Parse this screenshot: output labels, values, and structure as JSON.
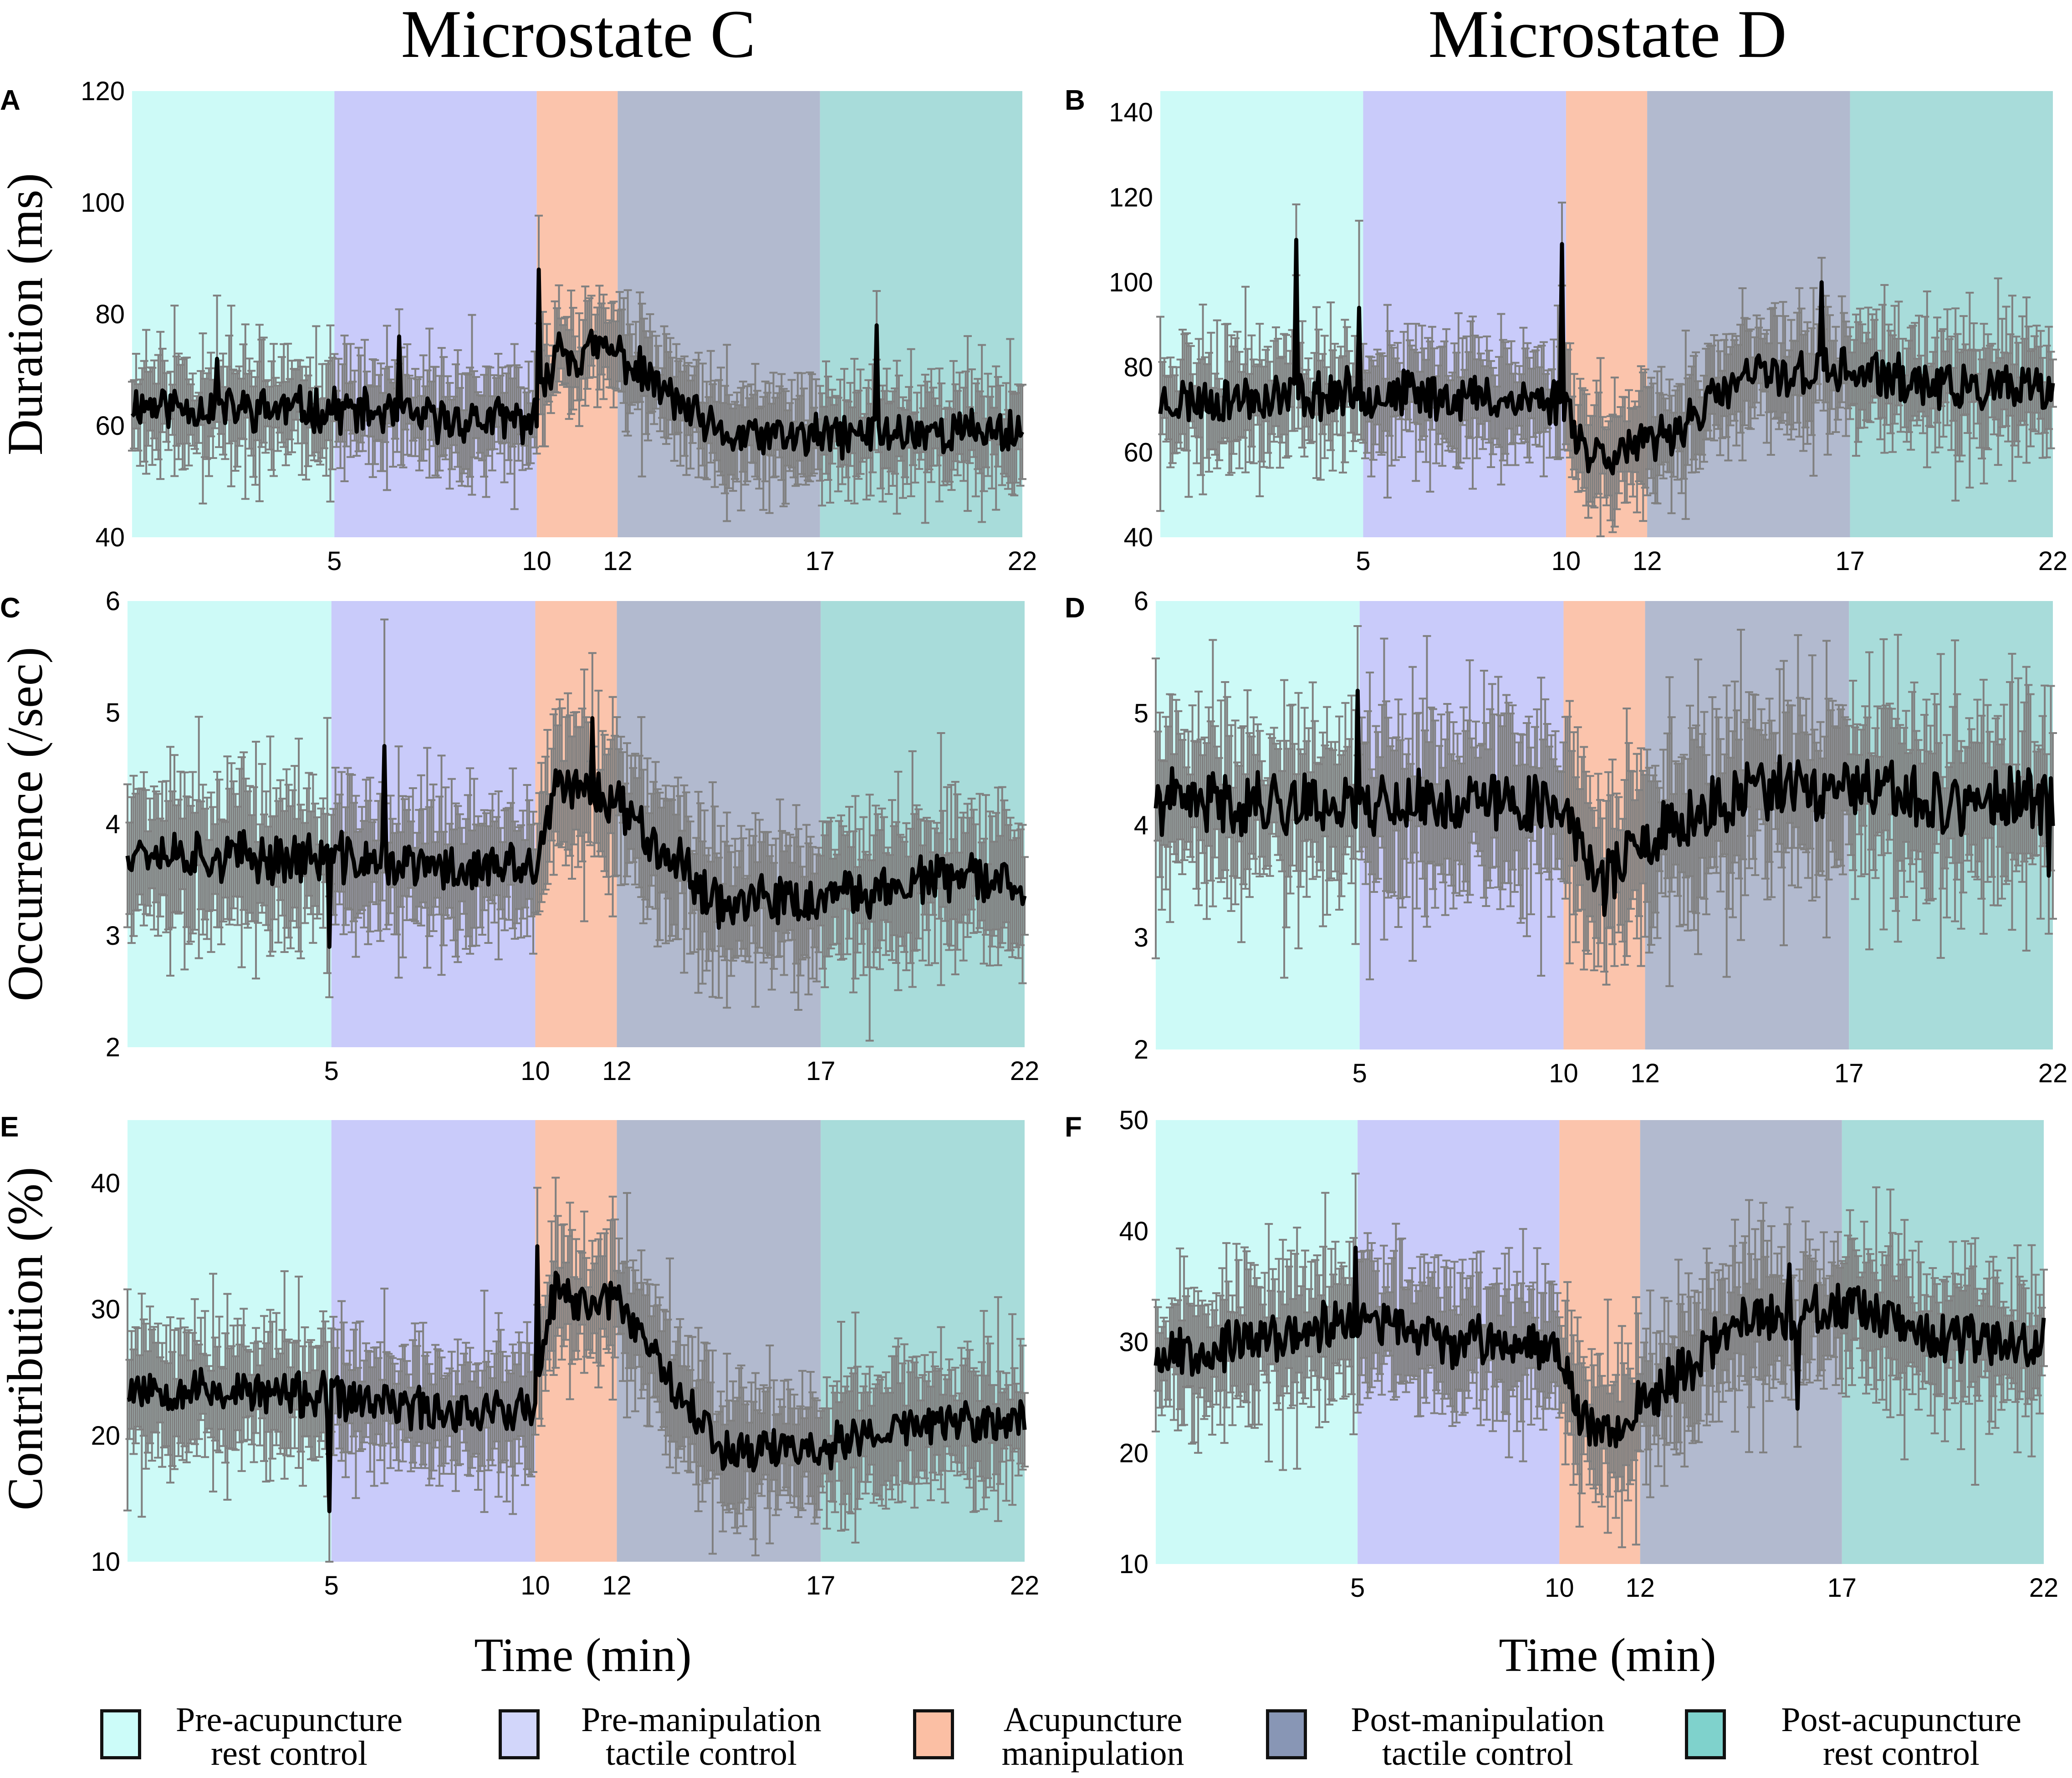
{
  "column_titles": [
    "Microstate C",
    "Microstate D"
  ],
  "x_axis_label": "Time (min)",
  "colors": {
    "pre_rest": "#cdfaf7",
    "pre_tactile": "#c9cbfa",
    "acupuncture": "#fbc4ac",
    "post_tactile": "#b2bacf",
    "post_rest": "#a8dcda",
    "line": "#000000",
    "error_bar": "#808080"
  },
  "legend": [
    {
      "key": "pre_rest",
      "line1": "Pre-acupuncture",
      "line2": "rest control",
      "color": "#ccfcf9"
    },
    {
      "key": "pre_tactile",
      "line1": "Pre-manipulation",
      "line2": "tactile control",
      "color": "#d2d6fa"
    },
    {
      "key": "acupuncture",
      "line1": "Acupuncture",
      "line2": "manipulation",
      "color": "#fbbfa4"
    },
    {
      "key": "post_tactile",
      "line1": "Post-manipulation",
      "line2": "tactile control",
      "color": "#8896b5"
    },
    {
      "key": "post_rest",
      "line1": "Post-acupuncture",
      "line2": "rest control",
      "color": "#7fd2cc"
    }
  ],
  "chart_data": [
    {
      "panel": "A",
      "type": "line",
      "column": "Microstate C",
      "ylabel": "Duration (ms)",
      "xlabel": "",
      "xlim": [
        0,
        22
      ],
      "ylim": [
        40,
        120
      ],
      "xticks": [
        5,
        10,
        12,
        17,
        22
      ],
      "yticks": [
        40,
        60,
        80,
        100,
        120
      ],
      "xtick_labels": [
        "5",
        "10",
        "12",
        "17",
        "22"
      ],
      "ytick_labels": [
        "40",
        "60",
        "80",
        "100",
        "120"
      ],
      "phases": [
        {
          "key": "pre_rest",
          "start": 0,
          "end": 5
        },
        {
          "key": "pre_tactile",
          "start": 5,
          "end": 10
        },
        {
          "key": "acupuncture",
          "start": 10,
          "end": 12
        },
        {
          "key": "post_tactile",
          "start": 12,
          "end": 17
        },
        {
          "key": "post_rest",
          "start": 17,
          "end": 22
        }
      ],
      "phase_means": [
        63,
        61,
        73,
        58,
        59
      ],
      "series": [
        {
          "name": "Mean duration",
          "x": [
            0,
            2.5,
            5,
            7.5,
            10,
            10.5,
            11,
            11.5,
            12,
            14.5,
            17,
            19.5,
            22
          ],
          "y": [
            64,
            63,
            63,
            61,
            61,
            75,
            72,
            74,
            73,
            58,
            58,
            59,
            59
          ]
        }
      ],
      "noise": 3.5,
      "err": 7,
      "seed": 11,
      "spikes": [
        {
          "x": 10.05,
          "y": 88
        },
        {
          "x": 2.1,
          "y": 72
        },
        {
          "x": 6.6,
          "y": 76
        },
        {
          "x": 18.4,
          "y": 78
        }
      ]
    },
    {
      "panel": "B",
      "type": "line",
      "column": "Microstate D",
      "ylabel": "",
      "xlabel": "",
      "xlim": [
        0,
        22
      ],
      "ylim": [
        40,
        145
      ],
      "xticks": [
        5,
        10,
        12,
        17,
        22
      ],
      "yticks": [
        40,
        60,
        80,
        100,
        120,
        140
      ],
      "xtick_labels": [
        "5",
        "10",
        "12",
        "17",
        "22"
      ],
      "ytick_labels": [
        "40",
        "60",
        "80",
        "100",
        "120",
        "140"
      ],
      "phases": [
        {
          "key": "pre_rest",
          "start": 0,
          "end": 5
        },
        {
          "key": "pre_tactile",
          "start": 5,
          "end": 10
        },
        {
          "key": "acupuncture",
          "start": 10,
          "end": 12
        },
        {
          "key": "post_tactile",
          "start": 12,
          "end": 17
        },
        {
          "key": "post_rest",
          "start": 17,
          "end": 22
        }
      ],
      "phase_means": [
        73,
        73,
        60,
        79,
        74
      ],
      "series": [
        {
          "name": "Mean duration",
          "x": [
            0,
            2.5,
            5,
            7.5,
            10,
            10.5,
            11,
            11.5,
            12,
            14.5,
            17,
            19.5,
            22
          ],
          "y": [
            72,
            73,
            74,
            73,
            72,
            60,
            60,
            61,
            61,
            78,
            79,
            75,
            74
          ]
        }
      ],
      "noise": 5,
      "err": 10,
      "seed": 23,
      "spikes": [
        {
          "x": 3.35,
          "y": 110
        },
        {
          "x": 9.9,
          "y": 109
        },
        {
          "x": 4.9,
          "y": 94
        },
        {
          "x": 16.3,
          "y": 100
        }
      ]
    },
    {
      "panel": "C",
      "type": "line",
      "column": "Microstate C",
      "ylabel": "Occurrence (/sec)",
      "xlabel": "",
      "xlim": [
        0,
        22
      ],
      "ylim": [
        2,
        6
      ],
      "xticks": [
        5,
        10,
        12,
        17,
        22
      ],
      "yticks": [
        2,
        3,
        4,
        5,
        6
      ],
      "xtick_labels": [
        "5",
        "10",
        "12",
        "17",
        "22"
      ],
      "ytick_labels": [
        "2",
        "3",
        "4",
        "5",
        "6"
      ],
      "phases": [
        {
          "key": "pre_rest",
          "start": 0,
          "end": 5
        },
        {
          "key": "pre_tactile",
          "start": 5,
          "end": 10
        },
        {
          "key": "acupuncture",
          "start": 10,
          "end": 12
        },
        {
          "key": "post_tactile",
          "start": 12,
          "end": 17
        },
        {
          "key": "post_rest",
          "start": 17,
          "end": 22
        }
      ],
      "phase_means": [
        3.7,
        3.6,
        4.3,
        3.3,
        3.5
      ],
      "series": [
        {
          "name": "Mean occurrence",
          "x": [
            0,
            2.5,
            5,
            7.5,
            10,
            10.5,
            11,
            11.5,
            12,
            14.5,
            17,
            19.5,
            22
          ],
          "y": [
            3.8,
            3.7,
            3.7,
            3.6,
            3.6,
            4.3,
            4.3,
            4.3,
            4.2,
            3.3,
            3.3,
            3.5,
            3.5
          ]
        }
      ],
      "noise": 0.2,
      "err": 0.5,
      "seed": 37,
      "spikes": [
        {
          "x": 4.95,
          "y": 2.9
        },
        {
          "x": 6.3,
          "y": 4.7
        },
        {
          "x": 11.4,
          "y": 4.95
        }
      ]
    },
    {
      "panel": "D",
      "type": "line",
      "column": "Microstate D",
      "ylabel": "",
      "xlabel": "",
      "xlim": [
        0,
        22
      ],
      "ylim": [
        2,
        6
      ],
      "xticks": [
        5,
        10,
        12,
        17,
        22
      ],
      "yticks": [
        2,
        3,
        4,
        5,
        6
      ],
      "xtick_labels": [
        "5",
        "10",
        "12",
        "17",
        "22"
      ],
      "ytick_labels": [
        "2",
        "3",
        "4",
        "5",
        "6"
      ],
      "phases": [
        {
          "key": "pre_rest",
          "start": 0,
          "end": 5
        },
        {
          "key": "pre_tactile",
          "start": 5,
          "end": 10
        },
        {
          "key": "acupuncture",
          "start": 10,
          "end": 12
        },
        {
          "key": "post_tactile",
          "start": 12,
          "end": 17
        },
        {
          "key": "post_rest",
          "start": 17,
          "end": 22
        }
      ],
      "phase_means": [
        4.2,
        4.2,
        3.7,
        4.3,
        4.2
      ],
      "series": [
        {
          "name": "Mean occurrence",
          "x": [
            0,
            2.5,
            5,
            7.5,
            10,
            10.5,
            11,
            11.5,
            12,
            14.5,
            17,
            19.5,
            22
          ],
          "y": [
            4.2,
            4.2,
            4.2,
            4.2,
            4.2,
            3.7,
            3.6,
            3.7,
            3.8,
            4.3,
            4.3,
            4.2,
            4.2
          ]
        }
      ],
      "noise": 0.25,
      "err": 0.6,
      "seed": 41,
      "spikes": [
        {
          "x": 4.95,
          "y": 5.2
        },
        {
          "x": 11.0,
          "y": 3.2
        },
        {
          "x": 21.9,
          "y": 3.55
        }
      ]
    },
    {
      "panel": "E",
      "type": "line",
      "column": "Microstate C",
      "ylabel": "Contribution (%)",
      "xlabel": "Time (min)",
      "xlim": [
        0,
        22
      ],
      "ylim": [
        10,
        45
      ],
      "xticks": [
        5,
        10,
        12,
        17,
        22
      ],
      "yticks": [
        10,
        20,
        30,
        40
      ],
      "xtick_labels": [
        "5",
        "10",
        "12",
        "17",
        "22"
      ],
      "ytick_labels": [
        "10",
        "20",
        "30",
        "40"
      ],
      "phases": [
        {
          "key": "pre_rest",
          "start": 0,
          "end": 5
        },
        {
          "key": "pre_tactile",
          "start": 5,
          "end": 10
        },
        {
          "key": "acupuncture",
          "start": 10,
          "end": 12
        },
        {
          "key": "post_tactile",
          "start": 12,
          "end": 17
        },
        {
          "key": "post_rest",
          "start": 17,
          "end": 22
        }
      ],
      "phase_means": [
        24,
        22,
        31,
        19,
        21
      ],
      "series": [
        {
          "name": "Mean contribution",
          "x": [
            0,
            2.5,
            5,
            7.5,
            10,
            10.5,
            11,
            11.5,
            12,
            14.5,
            17,
            19.5,
            22
          ],
          "y": [
            24,
            23.5,
            23,
            22,
            22,
            32,
            30,
            31,
            31,
            19,
            19,
            21,
            21
          ]
        }
      ],
      "noise": 1.6,
      "err": 4,
      "seed": 53,
      "spikes": [
        {
          "x": 4.95,
          "y": 14
        },
        {
          "x": 10.05,
          "y": 35
        }
      ]
    },
    {
      "panel": "F",
      "type": "line",
      "column": "Microstate D",
      "ylabel": "",
      "xlabel": "Time (min)",
      "xlim": [
        0,
        22
      ],
      "ylim": [
        10,
        50
      ],
      "xticks": [
        5,
        10,
        12,
        17,
        22
      ],
      "yticks": [
        10,
        20,
        30,
        40,
        50
      ],
      "xtick_labels": [
        "5",
        "10",
        "12",
        "17",
        "22"
      ],
      "ytick_labels": [
        "10",
        "20",
        "30",
        "40",
        "50"
      ],
      "phases": [
        {
          "key": "pre_rest",
          "start": 0,
          "end": 5
        },
        {
          "key": "pre_tactile",
          "start": 5,
          "end": 10
        },
        {
          "key": "acupuncture",
          "start": 10,
          "end": 12
        },
        {
          "key": "post_tactile",
          "start": 12,
          "end": 17
        },
        {
          "key": "post_rest",
          "start": 17,
          "end": 22
        }
      ],
      "phase_means": [
        30,
        30,
        23,
        32,
        30
      ],
      "series": [
        {
          "name": "Mean contribution",
          "x": [
            0,
            2.5,
            5,
            7.5,
            10,
            10.5,
            11,
            11.5,
            12,
            14.5,
            17,
            19.5,
            22
          ],
          "y": [
            29,
            30,
            32,
            30,
            30,
            23,
            22,
            23,
            24,
            32,
            33,
            30,
            30
          ]
        }
      ],
      "noise": 2,
      "err": 5,
      "seed": 67,
      "spikes": [
        {
          "x": 4.95,
          "y": 38.5
        },
        {
          "x": 15.7,
          "y": 37
        },
        {
          "x": 15.9,
          "y": 24
        }
      ]
    }
  ]
}
